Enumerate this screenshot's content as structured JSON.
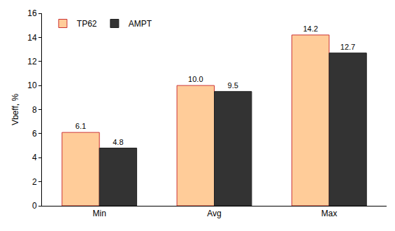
{
  "chart_data": {
    "type": "bar",
    "y_label": "Vbeff, %",
    "categories": [
      "Min",
      "Avg",
      "Max"
    ],
    "series": [
      {
        "name": "TP62",
        "color": "#FFCC99",
        "values": [
          6.1,
          10.0,
          14.2
        ],
        "value_labels": [
          "6.1",
          "10.0",
          "14.2"
        ]
      },
      {
        "name": "AMPT",
        "color": "#333333",
        "values": [
          4.8,
          9.5,
          12.7
        ],
        "value_labels": [
          "4.8",
          "9.5",
          "12.7"
        ]
      }
    ],
    "ylim": [
      0,
      16
    ],
    "yticks": [
      0,
      2,
      4,
      6,
      8,
      10,
      12,
      14,
      16
    ],
    "grid": false,
    "legend": "upper left",
    "data_labels": true
  }
}
